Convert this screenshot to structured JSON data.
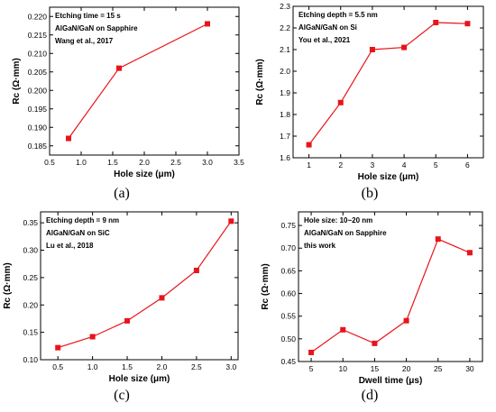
{
  "colors": {
    "series": "#e8141b",
    "axis": "#000000"
  },
  "chart_data": [
    {
      "type": "line",
      "panel_label": "(a)",
      "xlabel": "Hole size (μm)",
      "ylabel": "Rc (Ω·mm)",
      "annotations": [
        "Etching time = 15 s",
        "AlGaN/GaN on Sapphire",
        "Wang et al., 2017"
      ],
      "xlim": [
        0.5,
        3.5
      ],
      "ylim": [
        0.1825,
        0.2225
      ],
      "xticks": [
        "0.5",
        "1.0",
        "1.5",
        "2.0",
        "2.5",
        "3.0",
        "3.5"
      ],
      "yticks": [
        "0.185",
        "0.190",
        "0.195",
        "0.200",
        "0.205",
        "0.210",
        "0.215",
        "0.220"
      ],
      "x": [
        0.8,
        1.6,
        3.0
      ],
      "y": [
        0.187,
        0.206,
        0.218
      ]
    },
    {
      "type": "line",
      "panel_label": "(b)",
      "xlabel": "Hole size (μm)",
      "ylabel": "Rc (Ω·mm)",
      "annotations": [
        "Etching depth = 5.5 nm",
        "AlGaN/GaN on Si",
        "You et al., 2021"
      ],
      "xlim": [
        0.5,
        6.5
      ],
      "ylim": [
        1.6,
        2.3
      ],
      "xticks": [
        "1",
        "2",
        "3",
        "4",
        "5",
        "6"
      ],
      "yticks": [
        "1.6",
        "1.7",
        "1.8",
        "1.9",
        "2.0",
        "2.1",
        "2.2",
        "2.3"
      ],
      "x": [
        1,
        2,
        3,
        4,
        5,
        6
      ],
      "y": [
        1.66,
        1.855,
        2.1,
        2.11,
        2.225,
        2.22
      ]
    },
    {
      "type": "line",
      "panel_label": "(c)",
      "xlabel": "Hole size (μm)",
      "ylabel": "Rc (Ω·mm)",
      "annotations": [
        "Etching depth = 9 nm",
        "AlGaN/GaN on SiC",
        "Lu et al., 2018"
      ],
      "xlim": [
        0.25,
        3.1
      ],
      "ylim": [
        0.1,
        0.37
      ],
      "xticks": [
        "0.5",
        "1.0",
        "1.5",
        "2.0",
        "2.5",
        "3.0"
      ],
      "yticks": [
        "0.10",
        "0.15",
        "0.20",
        "0.25",
        "0.30",
        "0.35"
      ],
      "x": [
        0.5,
        1.0,
        1.5,
        2.0,
        2.5,
        3.0
      ],
      "y": [
        0.122,
        0.142,
        0.171,
        0.213,
        0.263,
        0.353
      ]
    },
    {
      "type": "line",
      "panel_label": "(d)",
      "xlabel": "Dwell time (μs)",
      "ylabel": "Rc (Ω·mm)",
      "annotations": [
        "Hole size: 10~20 nm",
        "AlGaN/GaN on Sapphire",
        "this work"
      ],
      "xlim": [
        3,
        32
      ],
      "ylim": [
        0.45,
        0.78
      ],
      "xticks": [
        "5",
        "10",
        "15",
        "20",
        "25",
        "30"
      ],
      "yticks": [
        "0.45",
        "0.50",
        "0.55",
        "0.60",
        "0.65",
        "0.70",
        "0.75"
      ],
      "x": [
        5,
        10,
        15,
        20,
        25,
        30
      ],
      "y": [
        0.47,
        0.52,
        0.49,
        0.54,
        0.72,
        0.69
      ]
    }
  ]
}
